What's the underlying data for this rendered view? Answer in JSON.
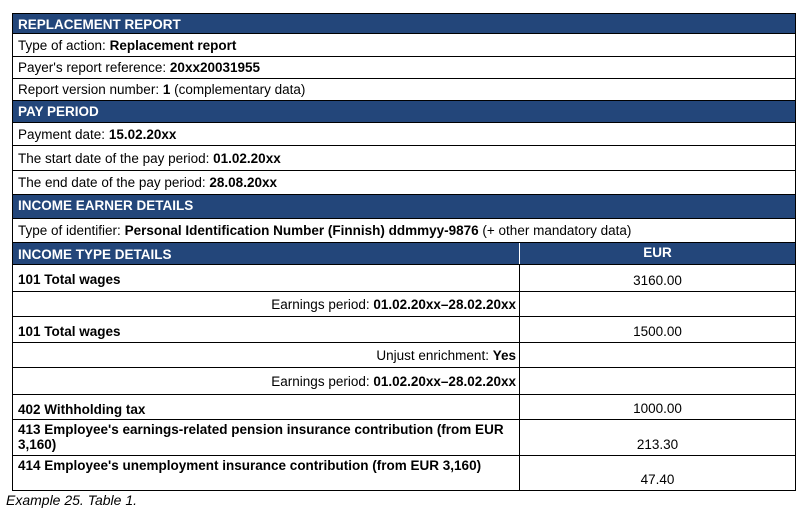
{
  "sections": [
    {
      "title": "REPLACEMENT REPORT",
      "rows": [
        {
          "label": "Type of action:",
          "value": "Replacement report"
        },
        {
          "label": "Payer's report reference:",
          "value": "20xx20031955"
        },
        {
          "label": "Report version number:",
          "value": "1",
          "suffix": "(complementary data)"
        }
      ]
    },
    {
      "title": "PAY PERIOD",
      "rows": [
        {
          "label": "Payment date:",
          "value": "15.02.20xx"
        },
        {
          "label": "The start date of the pay period:",
          "value": "01.02.20xx"
        },
        {
          "label": "The end date of the pay period:",
          "value": "28.08.20xx"
        }
      ]
    },
    {
      "title": "INCOME EARNER DETAILS",
      "rows": [
        {
          "label": "Type of identifier:",
          "value": "Personal Identification Number (Finnish) ddmmyy-9876",
          "suffix": "(+ other mandatory data)"
        }
      ]
    }
  ],
  "income_table": {
    "title": "INCOME TYPE DETAILS",
    "currency": "EUR",
    "rows": [
      {
        "label": "101 Total wages",
        "amount": "3160.00"
      },
      {
        "detail_label": "Earnings period:",
        "detail_value": "01.02.20xx–28.02.20xx"
      },
      {
        "label": "101 Total wages",
        "amount": "1500.00"
      },
      {
        "detail_label": "Unjust enrichment:",
        "detail_value": "Yes"
      },
      {
        "detail_label": "Earnings period:",
        "detail_value": "01.02.20xx–28.02.20xx"
      },
      {
        "label": "402 Withholding tax",
        "amount": "1000.00"
      },
      {
        "label": "413 Employee's earnings-related pension insurance contribution (from EUR 3,160)",
        "amount": "213.30"
      },
      {
        "label": "414 Employee's unemployment insurance contribution (from EUR 3,160)",
        "amount": "47.40"
      }
    ]
  },
  "caption": "Example 25. Table 1."
}
